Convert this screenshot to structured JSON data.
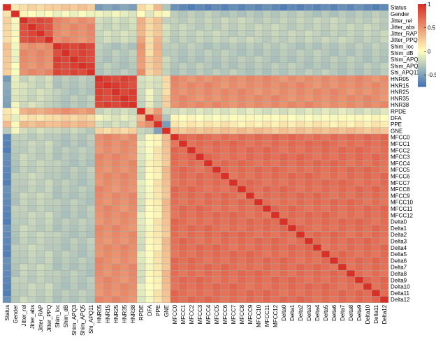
{
  "chart_data": {
    "type": "heatmap",
    "title": "",
    "labels": [
      "Status",
      "Gender",
      "Jitter_rel",
      "Jitter_abs",
      "Jitter_RAP",
      "Jitter_PPQ",
      "Shim_loc",
      "Shim_dB",
      "Shim_APQ3",
      "Shim_APQ5",
      "Shi_APQ11",
      "HNR05",
      "HNR15",
      "HNR25",
      "HNR35",
      "HNR38",
      "RPDE",
      "DFA",
      "PPE",
      "GNE",
      "MFCC0",
      "MFCC1",
      "MFCC2",
      "MFCC3",
      "MFCC4",
      "MFCC5",
      "MFCC6",
      "MFCC7",
      "MFCC8",
      "MFCC9",
      "MFCC10",
      "MFCC11",
      "MFCC12",
      "Delta0",
      "Delta1",
      "Delta2",
      "Delta3",
      "Delta4",
      "Delta5",
      "Delta6",
      "Delta7",
      "Delta8",
      "Delta9",
      "Delta10",
      "Delta11",
      "Delta12"
    ],
    "groups": {
      "status": [
        "Status"
      ],
      "gender": [
        "Gender"
      ],
      "jitter": [
        "Jitter_rel",
        "Jitter_abs",
        "Jitter_RAP",
        "Jitter_PPQ"
      ],
      "shimmer": [
        "Shim_loc",
        "Shim_dB",
        "Shim_APQ3",
        "Shim_APQ5",
        "Shi_APQ11"
      ],
      "hnr": [
        "HNR05",
        "HNR15",
        "HNR25",
        "HNR35",
        "HNR38"
      ],
      "rpde": [
        "RPDE"
      ],
      "dfa": [
        "DFA"
      ],
      "ppe": [
        "PPE"
      ],
      "gne": [
        "GNE"
      ],
      "mfcc": [
        "MFCC0",
        "MFCC1",
        "MFCC2",
        "MFCC3",
        "MFCC4",
        "MFCC5",
        "MFCC6",
        "MFCC7",
        "MFCC8",
        "MFCC9",
        "MFCC10",
        "MFCC11",
        "MFCC12",
        "Delta0",
        "Delta1",
        "Delta2",
        "Delta3",
        "Delta4",
        "Delta5",
        "Delta6",
        "Delta7",
        "Delta8",
        "Delta9",
        "Delta10",
        "Delta11",
        "Delta12"
      ]
    },
    "group_correlations": {
      "status-status": 1.0,
      "status-gender": 0.1,
      "status-jitter": 0.2,
      "status-shimmer": 0.25,
      "status-hnr": -0.5,
      "status-rpde": 0.15,
      "status-dfa": 0.1,
      "status-ppe": 0.3,
      "status-gne": -0.3,
      "status-mfcc": -0.65,
      "gender-gender": 1.0,
      "gender-jitter": 0.0,
      "gender-shimmer": -0.05,
      "gender-hnr": -0.1,
      "gender-rpde": 0.0,
      "gender-dfa": -0.1,
      "gender-ppe": 0.05,
      "gender-gne": 0.0,
      "gender-mfcc": -0.3,
      "jitter-jitter": 0.85,
      "jitter-shimmer": 0.55,
      "jitter-hnr": -0.2,
      "jitter-rpde": 0.4,
      "jitter-dfa": 0.15,
      "jitter-ppe": 0.3,
      "jitter-gne": -0.2,
      "jitter-mfcc": -0.25,
      "shimmer-shimmer": 0.9,
      "shimmer-hnr": -0.3,
      "shimmer-rpde": 0.5,
      "shimmer-dfa": 0.2,
      "shimmer-ppe": 0.35,
      "shimmer-gne": -0.25,
      "shimmer-mfcc": -0.3,
      "hnr-hnr": 0.9,
      "hnr-rpde": -0.2,
      "hnr-dfa": -0.1,
      "hnr-ppe": -0.2,
      "hnr-gne": 0.2,
      "hnr-mfcc": 0.55,
      "rpde-rpde": 1.0,
      "rpde-dfa": 0.3,
      "rpde-ppe": 0.45,
      "rpde-gne": -0.2,
      "rpde-mfcc": -0.15,
      "dfa-dfa": 1.0,
      "dfa-ppe": 0.6,
      "dfa-gne": -0.3,
      "dfa-mfcc": 0.0,
      "ppe-ppe": 1.0,
      "ppe-gne": -0.5,
      "ppe-mfcc": 0.1,
      "gne-gne": 1.0,
      "gne-mfcc": 0.3,
      "mfcc-mfcc": 0.7
    },
    "legend": {
      "ticks": [
        "1",
        "0.5",
        "0",
        "-0.5"
      ],
      "min": -0.75,
      "max": 1.0,
      "low_color": "#4575b4",
      "mid_color": "#ffffbf",
      "high_color": "#d73027"
    }
  }
}
